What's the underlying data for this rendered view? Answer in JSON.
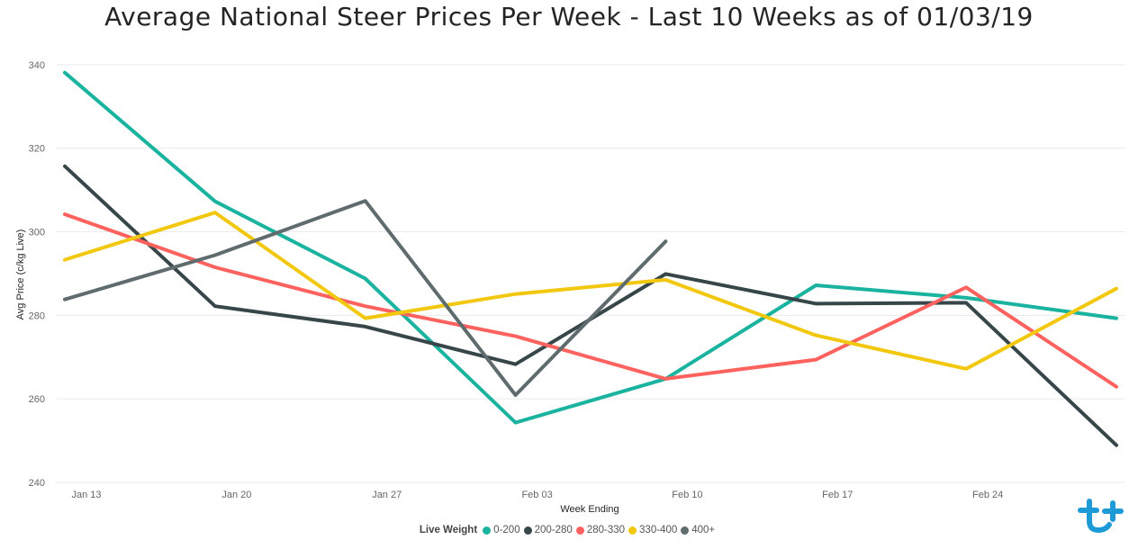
{
  "chart_data": {
    "type": "line",
    "title": "Average National Steer Prices Per Week - Last 10 Weeks as of 01/03/19",
    "xlabel": "Week Ending",
    "ylabel": "Avg Price (c/kg Live)",
    "x": [
      "2019-01-13",
      "2019-01-20",
      "2019-01-27",
      "2019-02-03",
      "2019-02-10",
      "2019-02-17",
      "2019-02-24",
      "2019-03-03"
    ],
    "x_tick_labels": [
      "Jan 13",
      "Jan 20",
      "Jan 27",
      "Feb 03",
      "Feb 10",
      "Feb 17",
      "Feb 24"
    ],
    "ylim": [
      240,
      343
    ],
    "y_ticks": [
      240,
      260,
      280,
      300,
      320,
      340
    ],
    "grid": true,
    "legend": {
      "title": "Live Weight",
      "position": "bottom-center"
    },
    "series": [
      {
        "name": "0-200",
        "color": "#1AB39F",
        "values": [
          338.1,
          307.3,
          288.8,
          254.3,
          264.8,
          287.2,
          284.2,
          279.3
        ]
      },
      {
        "name": "200-280",
        "color": "#374649",
        "values": [
          315.7,
          282.2,
          277.3,
          268.3,
          289.9,
          282.8,
          283.0,
          248.9
        ]
      },
      {
        "name": "280-330",
        "color": "#FD625E",
        "values": [
          304.2,
          291.5,
          282.2,
          275.0,
          264.8,
          269.4,
          286.7,
          262.9
        ]
      },
      {
        "name": "330-400",
        "color": "#F2C80F",
        "values": [
          293.3,
          304.6,
          279.3,
          285.1,
          288.5,
          275.2,
          267.2,
          286.4
        ]
      },
      {
        "name": "400+",
        "color": "#5F6B6D",
        "values": [
          283.8,
          294.4,
          307.4,
          260.9,
          297.7,
          null,
          null,
          null
        ]
      }
    ]
  }
}
